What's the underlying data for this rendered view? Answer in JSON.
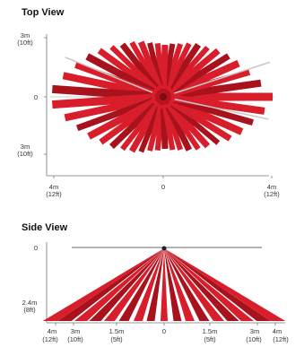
{
  "top_view": {
    "title": "Top View",
    "y_labels": [
      {
        "line1": "3m",
        "line2": "(10ft)"
      },
      {
        "line1": "0",
        "line2": ""
      },
      {
        "line1": "3m",
        "line2": "(10ft)"
      }
    ],
    "x_labels": [
      {
        "line1": "4m",
        "line2": "(12ft)"
      },
      {
        "line1": "0",
        "line2": ""
      },
      {
        "line1": "4m",
        "line2": "(12ft)"
      }
    ]
  },
  "side_view": {
    "title": "Side View",
    "y_labels": [
      {
        "line1": "0",
        "line2": ""
      },
      {
        "line1": "2.4m",
        "line2": "(8ft)"
      }
    ],
    "x_labels": [
      {
        "line1": "4m",
        "line2": "(12ft)"
      },
      {
        "line1": "3m",
        "line2": "(10ft)"
      },
      {
        "line1": "1.5m",
        "line2": "(5ft)"
      },
      {
        "line1": "0",
        "line2": ""
      },
      {
        "line1": "1.5m",
        "line2": "(5ft)"
      },
      {
        "line1": "3m",
        "line2": "(10ft)"
      },
      {
        "line1": "4m",
        "line2": "(12ft)"
      }
    ]
  },
  "colors": {
    "beam_red": "#d81e2a",
    "beam_dark": "#a8121c",
    "beam_highlight": "#f06a6a",
    "axis": "#777777",
    "gray_beam": "#c8c8c8"
  }
}
